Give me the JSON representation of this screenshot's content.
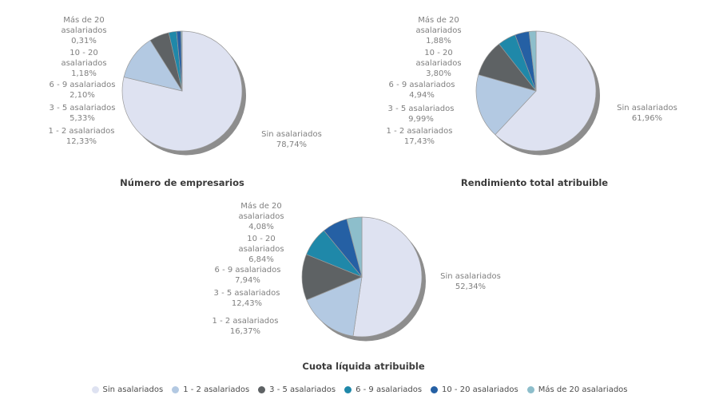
{
  "page": {
    "background": "#FFFFFF"
  },
  "categories": [
    {
      "key": "sin-asalariados",
      "label": "Sin asalariados",
      "color": "#DEE2F1"
    },
    {
      "key": "1-2-asalariados",
      "label": "1 - 2 asalariados",
      "color": "#B3C9E2"
    },
    {
      "key": "3-5-asalariados",
      "label": "3 - 5 asalariados",
      "color": "#5E6264"
    },
    {
      "key": "6-9-asalariados",
      "label": "6 - 9 asalariados",
      "color": "#1F88A9"
    },
    {
      "key": "10-20-asalariados",
      "label": "10 - 20 asalariados",
      "color": "#2560A4"
    },
    {
      "key": "mas-de-20-asalariados",
      "label": "Más de 20 asalariados",
      "color": "#8DBECB"
    }
  ],
  "chart_data": [
    {
      "type": "pie",
      "title": "Número de empresarios",
      "categories": [
        "Sin asalariados",
        "1 - 2 asalariados",
        "3 - 5 asalariados",
        "6 - 9 asalariados",
        "10 - 20 asalariados",
        "Más de 20 asalariados"
      ],
      "values": [
        78.74,
        12.33,
        5.33,
        2.1,
        1.18,
        0.31
      ],
      "value_labels": [
        "78,74%",
        "12,33%",
        "5,33%",
        "2,10%",
        "1,18%",
        "0,31%"
      ],
      "start_angle_deg": 0,
      "direction": "clockwise",
      "labels_position": "outside"
    },
    {
      "type": "pie",
      "title": "Rendimiento total atribuible",
      "categories": [
        "Sin asalariados",
        "1 - 2 asalariados",
        "3 - 5 asalariados",
        "6 - 9 asalariados",
        "10 - 20 asalariados",
        "Más de 20 asalariados"
      ],
      "values": [
        61.96,
        17.43,
        9.99,
        4.94,
        3.8,
        1.88
      ],
      "value_labels": [
        "61,96%",
        "17,43%",
        "9,99%",
        "4,94%",
        "3,80%",
        "1,88%"
      ],
      "start_angle_deg": 0,
      "direction": "clockwise",
      "labels_position": "outside"
    },
    {
      "type": "pie",
      "title": "Cuota líquida atribuible",
      "categories": [
        "Sin asalariados",
        "1 - 2 asalariados",
        "3 - 5 asalariados",
        "6 - 9 asalariados",
        "10 - 20 asalariados",
        "Más de 20 asalariados"
      ],
      "values": [
        52.34,
        16.37,
        12.43,
        7.94,
        6.84,
        4.08
      ],
      "value_labels": [
        "52,34%",
        "16,37%",
        "12,43%",
        "7,94%",
        "6,84%",
        "4,08%"
      ],
      "start_angle_deg": 0,
      "direction": "clockwise",
      "labels_position": "outside"
    }
  ],
  "legend": {
    "position": "bottom",
    "items": [
      "Sin asalariados",
      "1 - 2 asalariados",
      "3 - 5 asalariados",
      "6 - 9 asalariados",
      "10 - 20 asalariados",
      "Más de 20 asalariados"
    ]
  },
  "style": {
    "shadow_color": "#8D8D8D",
    "slice_stroke": "#999999",
    "label_text_color": "#808080",
    "title_text_color": "#3B3B3B",
    "legend_text_color": "#4C4C4C"
  }
}
